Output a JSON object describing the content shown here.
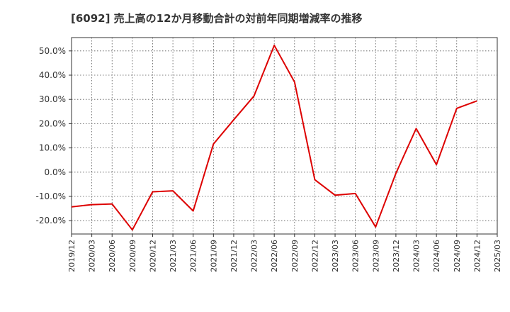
{
  "chart_data": {
    "type": "line",
    "title": "[6092]  売上高の12か月移動合計の対前年同期増減率の推移",
    "xlabel": "",
    "ylabel": "",
    "ylim": [
      -25.5,
      55.5
    ],
    "yticks": [
      50,
      40,
      30,
      20,
      10,
      0,
      -10,
      -20
    ],
    "ytick_labels": [
      "50.0%",
      "40.0%",
      "30.0%",
      "20.0%",
      "10.0%",
      "0.0%",
      "-10.0%",
      "-20.0%"
    ],
    "x_categories": [
      "2019/12",
      "2020/03",
      "2020/06",
      "2020/09",
      "2020/12",
      "2021/03",
      "2021/06",
      "2021/09",
      "2021/12",
      "2022/03",
      "2022/06",
      "2022/09",
      "2022/12",
      "2023/03",
      "2023/06",
      "2023/09",
      "2023/12",
      "2024/03",
      "2024/06",
      "2024/09",
      "2024/12",
      "2025/03"
    ],
    "series": [
      {
        "name": "増減率",
        "color": "#dd0000",
        "values": [
          -14.3,
          -13.4,
          -13.1,
          -23.8,
          -8.1,
          -7.7,
          -16.0,
          11.6,
          21.6,
          31.4,
          52.3,
          37.2,
          -3.1,
          -9.5,
          -8.8,
          -22.6,
          -0.5,
          18.0,
          3.1,
          26.3,
          29.4,
          null
        ]
      }
    ]
  }
}
